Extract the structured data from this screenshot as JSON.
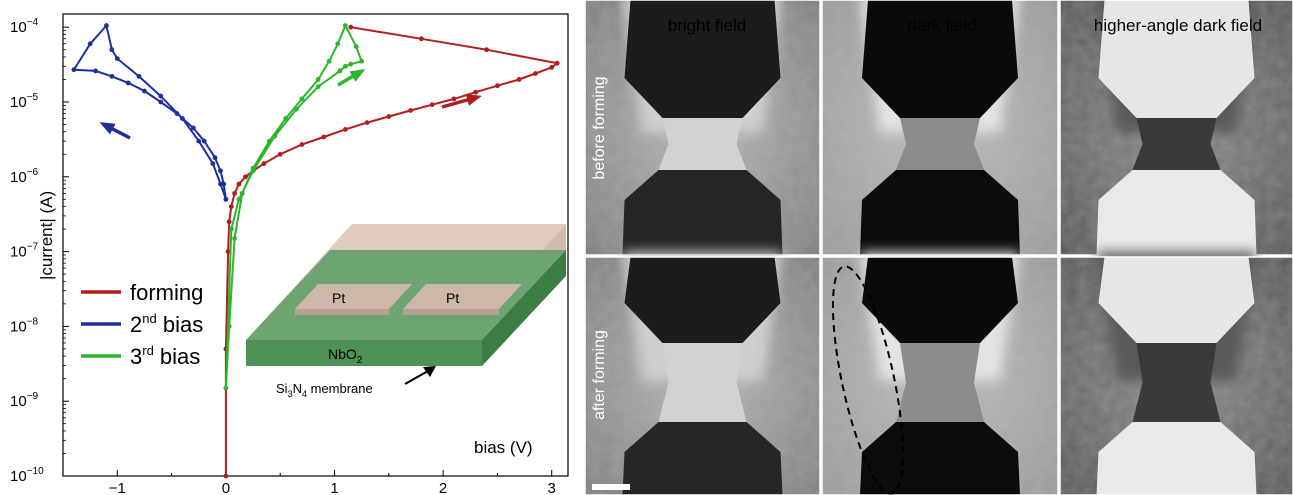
{
  "chart_data": {
    "type": "line",
    "xlabel": "bias (V)",
    "ylabel": "|current| (A)",
    "y_scale": "log",
    "xlim": [
      -1.5,
      3.15
    ],
    "ylim": [
      1e-10,
      0.00015
    ],
    "x_ticks": [
      "-1",
      "0",
      "1",
      "2",
      "3"
    ],
    "y_ticks": [
      {
        "base": "10",
        "exp": "-10"
      },
      {
        "base": "10",
        "exp": "-9"
      },
      {
        "base": "10",
        "exp": "-8"
      },
      {
        "base": "10",
        "exp": "-7"
      },
      {
        "base": "10",
        "exp": "-6"
      },
      {
        "base": "10",
        "exp": "-5"
      },
      {
        "base": "10",
        "exp": "-4"
      }
    ],
    "legend_position": "middle-left",
    "series": [
      {
        "name": "forming",
        "legend_main": "forming",
        "legend_sup": "",
        "legend_rest": "",
        "color": "#b21e1e",
        "x": [
          0.0,
          0.0,
          0.02,
          0.03,
          0.05,
          0.08,
          0.12,
          0.18,
          0.25,
          0.35,
          0.5,
          0.7,
          0.9,
          1.1,
          1.3,
          1.5,
          1.7,
          1.9,
          2.1,
          2.3,
          2.5,
          2.7,
          2.85,
          3.0,
          3.05,
          2.4,
          1.8,
          1.15
        ],
        "y": [
          1e-10,
          5e-09,
          1e-07,
          2.5e-07,
          4e-07,
          6e-07,
          8e-07,
          1e-06,
          1.2e-06,
          1.5e-06,
          2e-06,
          2.7e-06,
          3.4e-06,
          4.3e-06,
          5.3e-06,
          6.4e-06,
          7.7e-06,
          9.2e-06,
          1.1e-05,
          1.35e-05,
          1.65e-05,
          2e-05,
          2.4e-05,
          2.9e-05,
          3.3e-05,
          5e-05,
          7e-05,
          0.0001
        ]
      },
      {
        "name": "2nd bias",
        "legend_main": "2",
        "legend_sup": "nd",
        "legend_rest": " bias",
        "color": "#1e2f9e",
        "x": [
          0.0,
          -0.02,
          -0.05,
          -0.1,
          -0.2,
          -0.3,
          -0.45,
          -0.6,
          -0.75,
          -0.9,
          -1.05,
          -1.2,
          -1.4,
          -1.25,
          -1.1,
          -1.05,
          -1.0,
          -0.8,
          -0.6,
          -0.4,
          -0.25,
          -0.12,
          -0.05,
          0.0
        ],
        "y": [
          5e-07,
          8e-07,
          1.2e-06,
          1.8e-06,
          3e-06,
          4.5e-06,
          7e-06,
          1e-05,
          1.4e-05,
          1.8e-05,
          2.2e-05,
          2.6e-05,
          2.7e-05,
          6e-05,
          0.000105,
          5e-05,
          3.8e-05,
          2.2e-05,
          1.2e-05,
          6e-06,
          3e-06,
          1.5e-06,
          8e-07,
          5e-07
        ]
      },
      {
        "name": "3rd bias",
        "legend_main": "3",
        "legend_sup": "rd",
        "legend_rest": " bias",
        "color": "#2db52d",
        "x": [
          0.0,
          0.03,
          0.08,
          0.15,
          0.25,
          0.4,
          0.55,
          0.7,
          0.85,
          0.95,
          1.03,
          1.1,
          1.2,
          1.25,
          1.15,
          1.1,
          1.05,
          0.85,
          0.65,
          0.45,
          0.25,
          0.12,
          0.05,
          0.0
        ],
        "y": [
          1.5e-09,
          1e-08,
          1.5e-07,
          6e-07,
          1.3e-06,
          3e-06,
          6e-06,
          1.1e-05,
          2e-05,
          3.5e-05,
          6e-05,
          0.000105,
          5.5e-05,
          3.5e-05,
          3.2e-05,
          3e-05,
          2.6e-05,
          1.6e-05,
          8e-06,
          3.5e-06,
          1.2e-06,
          5e-07,
          2e-07,
          1.5e-09
        ]
      }
    ]
  },
  "inset": {
    "pt_label": "Pt",
    "nbo2_main": "NbO",
    "nbo2_sub": "2",
    "membrane_si": "Si",
    "membrane_sub3": "3",
    "membrane_n": "N",
    "membrane_sub4": "4",
    "membrane_rest": " membrane"
  },
  "tem": {
    "columns": [
      "bright field",
      "dark field",
      "higher-angle dark field"
    ],
    "rows": [
      "before forming",
      "after forming"
    ]
  }
}
